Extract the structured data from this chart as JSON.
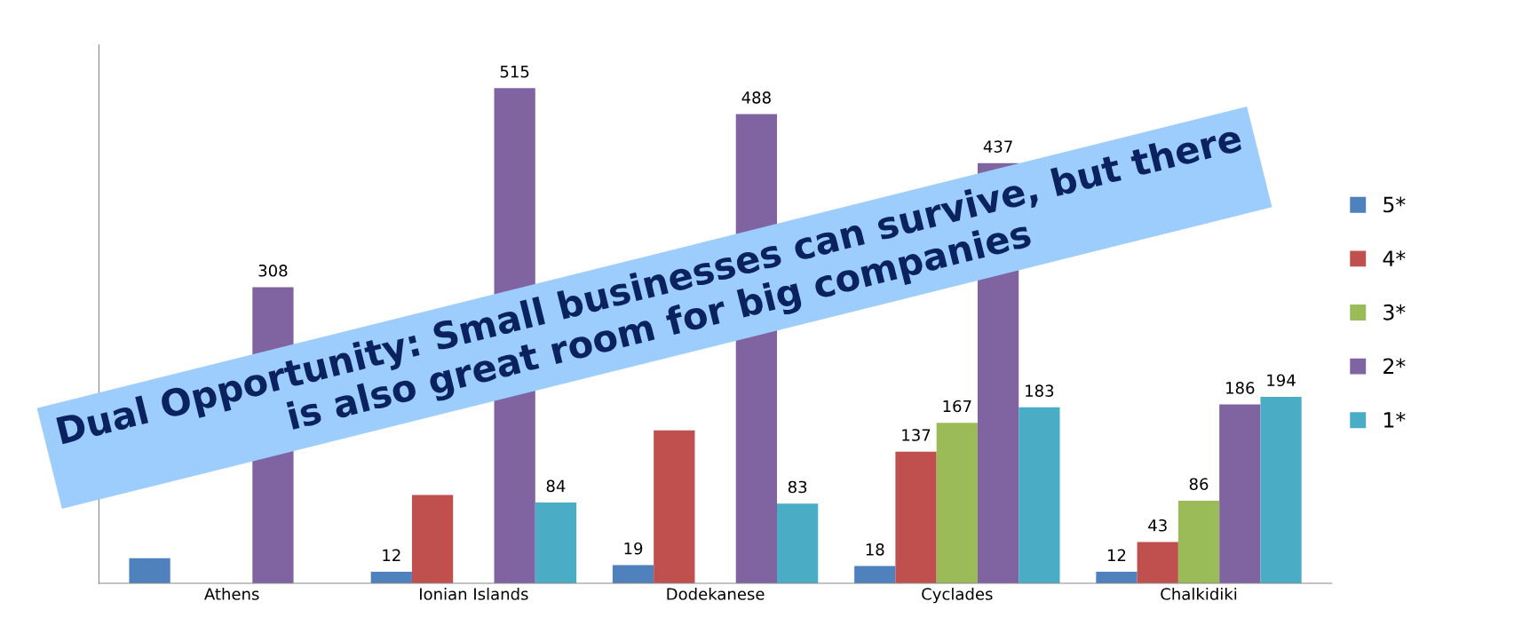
{
  "chart_data": {
    "type": "bar",
    "categories": [
      "Athens",
      "Ionian Islands",
      "Dodekanese",
      "Cyclades",
      "Chalkidiki"
    ],
    "series": [
      {
        "name": "5*",
        "color": "#4f81bd",
        "values": [
          26,
          12,
          19,
          18,
          12
        ],
        "value_labels": [
          null,
          "12",
          "19",
          "18",
          "12"
        ]
      },
      {
        "name": "4*",
        "color": "#c0504d",
        "values": [
          null,
          92,
          159,
          137,
          43
        ],
        "value_labels": [
          null,
          null,
          null,
          "137",
          "43"
        ]
      },
      {
        "name": "3*",
        "color": "#9bbb59",
        "values": [
          null,
          null,
          null,
          167,
          86
        ],
        "value_labels": [
          null,
          null,
          null,
          "167",
          "86"
        ]
      },
      {
        "name": "2*",
        "color": "#8064a2",
        "values": [
          308,
          515,
          488,
          437,
          186
        ],
        "value_labels": [
          "308",
          "515",
          "488",
          "437",
          "186"
        ]
      },
      {
        "name": "1*",
        "color": "#4bacc6",
        "values": [
          null,
          84,
          83,
          183,
          194
        ],
        "value_labels": [
          null,
          "84",
          "83",
          "183",
          "194"
        ]
      }
    ],
    "ylim": [
      0,
      560
    ],
    "legend": "right",
    "grid": false,
    "annotations": [
      "Dual Opportunity: Small businesses can survive, but there\nis also great room for big companies"
    ]
  }
}
